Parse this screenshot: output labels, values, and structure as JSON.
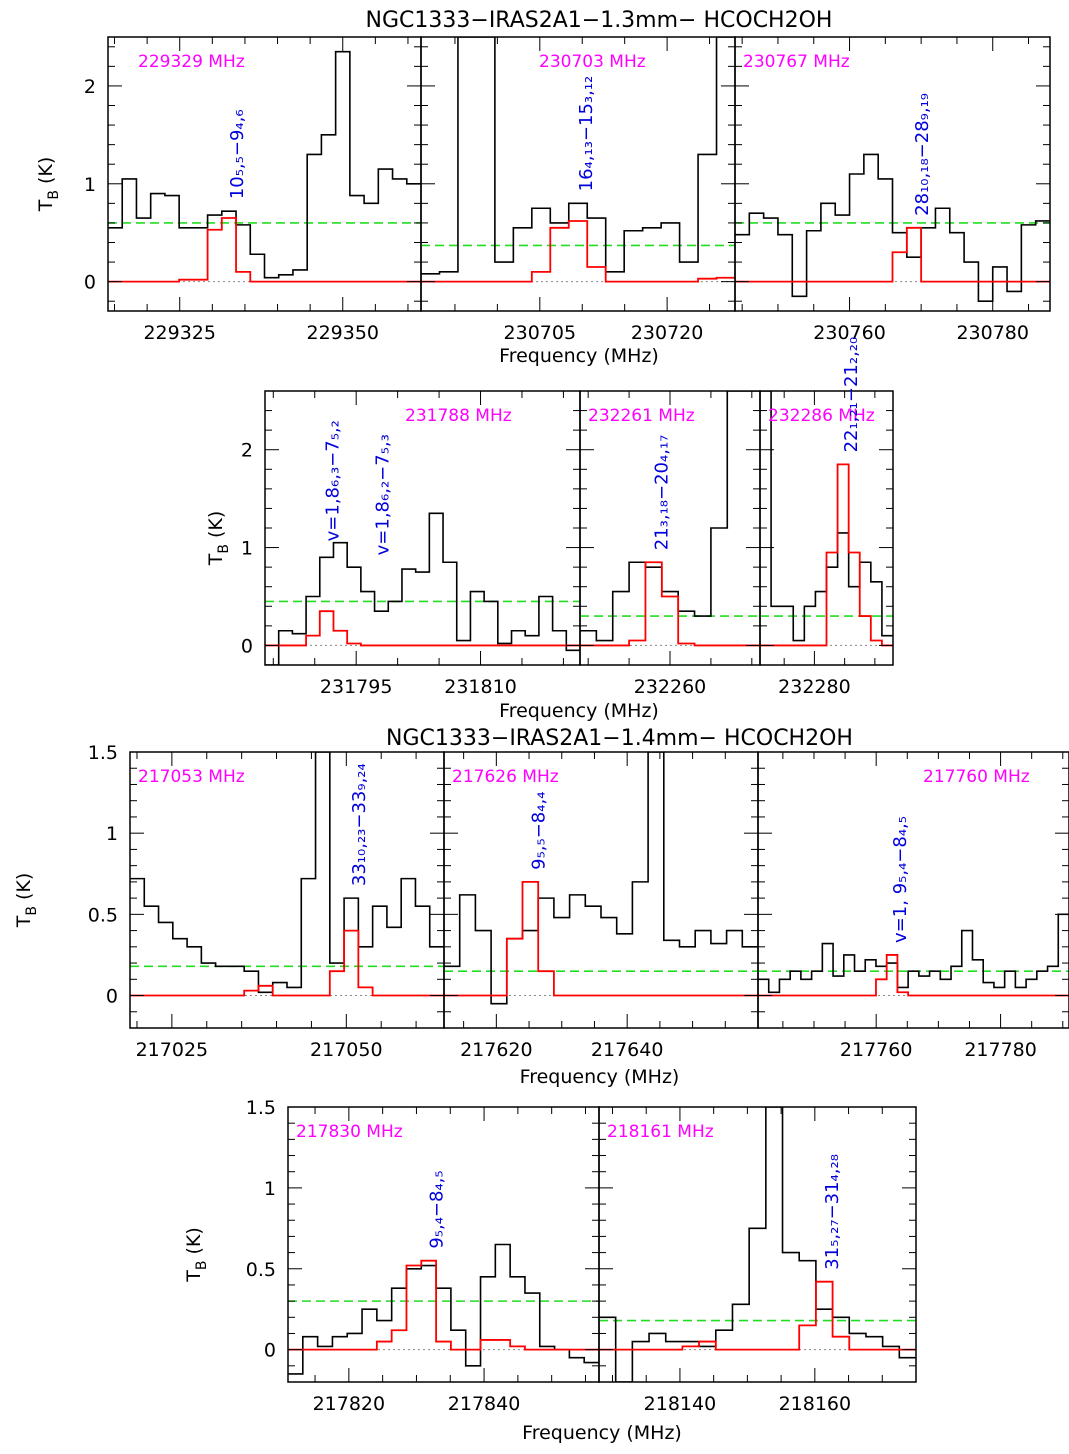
{
  "colors": {
    "observed": "#000000",
    "model": "#ff0000",
    "rms": "#22dd22",
    "freq_label": "#ff00ff",
    "transition": "#0000dd",
    "zero": "#888888"
  },
  "chart_data": [
    {
      "type": "line",
      "title": "NGC1333−IRAS2A1−1.3mm− HCOCH2OH",
      "xlabel": "Frequency (MHz)",
      "ylabel": "T_B (K)",
      "ylim": [
        -0.3,
        2.5
      ],
      "yticks": [
        "0",
        "1",
        "2"
      ],
      "panels": [
        {
          "freq_label": "229329 MHz",
          "transition": "10₅,₅−9₄,₆",
          "xlim": [
            229314,
            229362
          ],
          "xticks": [
            "229325",
            "229350"
          ],
          "rms": 0.6,
          "observed": [
            0.55,
            1.05,
            0.65,
            0.9,
            0.88,
            0.55,
            0.55,
            0.68,
            0.72,
            0.58,
            0.28,
            0.04,
            0.07,
            0.12,
            1.3,
            1.5,
            2.35,
            0.88,
            0.8,
            1.15,
            1.05,
            1.0
          ],
          "model": [
            0,
            0,
            0,
            0,
            0,
            0.02,
            0.02,
            0.53,
            0.65,
            0.1,
            0,
            0,
            0,
            0,
            0,
            0,
            0,
            0,
            0,
            0,
            0,
            0
          ]
        },
        {
          "freq_label": "230703 MHz",
          "transition": "16₄,₁₃−15₃,₁₂",
          "xlim": [
            230691,
            230728
          ],
          "xticks": [
            "230705",
            "230720"
          ],
          "rms": 0.37,
          "observed": [
            0.08,
            0.1,
            2.5,
            2.5,
            0.2,
            0.55,
            0.75,
            0.6,
            0.8,
            0.65,
            0.1,
            0.52,
            0.55,
            0.6,
            0.2,
            1.3,
            2.5
          ],
          "model": [
            0,
            0,
            0,
            0,
            0,
            0,
            0.1,
            0.55,
            0.62,
            0.15,
            0,
            0,
            0,
            0,
            0,
            0.03,
            0.04
          ]
        },
        {
          "freq_label": "230767 MHz",
          "transition": "28₁₀,₁₈−28₉,₁₉",
          "xlim": [
            230744,
            230788
          ],
          "xticks": [
            "230760",
            "230780"
          ],
          "rms": 0.6,
          "observed": [
            0.48,
            0.7,
            0.65,
            0.48,
            -0.15,
            0.52,
            0.8,
            0.68,
            1.1,
            1.3,
            1.05,
            0.5,
            0.25,
            0.55,
            0.75,
            0.5,
            0.2,
            -0.2,
            0.15,
            -0.1,
            0.58,
            0.62
          ],
          "model": [
            0,
            0,
            0,
            0,
            0,
            0,
            0,
            0,
            0,
            0,
            0,
            0.3,
            0.55,
            0,
            0,
            0,
            0,
            0,
            0,
            0,
            0,
            0
          ]
        }
      ]
    },
    {
      "type": "line",
      "title": "",
      "xlabel": "Frequency (MHz)",
      "ylabel": "T_B (K)",
      "ylim": [
        -0.2,
        2.6
      ],
      "yticks": [
        "0",
        "1",
        "2"
      ],
      "panels": [
        {
          "freq_label": "231788 MHz",
          "transition": "v=1,8₆,₃−7₅,₂",
          "transition2": "v=1,8₆,₂−7₅,₃",
          "xlim": [
            231784,
            231822
          ],
          "xticks": [
            "231795",
            "231810"
          ],
          "rms": 0.45,
          "observed": [
            -0.2,
            0.15,
            0.12,
            0.5,
            0.9,
            1.05,
            0.8,
            0.55,
            0.35,
            0.45,
            0.78,
            0.75,
            1.35,
            0.85,
            0.05,
            0.55,
            0.45,
            0.02,
            0.15,
            0.1,
            0.5,
            0.15,
            -0.05
          ],
          "model": [
            0,
            0,
            0,
            0.1,
            0.35,
            0.15,
            0.02,
            0,
            0,
            0,
            0,
            0,
            0,
            0,
            0,
            0,
            0,
            0,
            0,
            0,
            0,
            0,
            0
          ]
        },
        {
          "freq_label": "232261 MHz",
          "transition": "21₃,₁₈−20₄,₁₇",
          "xlim": [
            232249,
            232271
          ],
          "xticks": [
            "232260"
          ],
          "rms": 0.3,
          "observed": [
            0.15,
            0.05,
            0.55,
            0.85,
            0.8,
            0.55,
            0.35,
            0.3,
            1.2,
            2.6,
            2.6
          ],
          "model": [
            0,
            0,
            0,
            0.05,
            0.85,
            0.5,
            0.02,
            0,
            0,
            0,
            0
          ]
        },
        {
          "freq_label": "232286 MHz",
          "transition": "22₁,₂₁−21₂,₂₀",
          "xlim": [
            232271,
            232293
          ],
          "xticks": [
            "232280"
          ],
          "rms": 0.3,
          "observed": [
            2.6,
            0.4,
            0.4,
            0.05,
            0.4,
            0.55,
            0.8,
            1.15,
            0.6,
            0.85,
            0.65,
            0.1
          ],
          "model": [
            0,
            0,
            0,
            0,
            0,
            0,
            0.95,
            1.85,
            0.95,
            0.3,
            0.05,
            0
          ]
        }
      ]
    },
    {
      "type": "line",
      "title": "NGC1333−IRAS2A1−1.4mm− HCOCH2OH",
      "xlabel": "Frequency (MHz)",
      "ylabel": "T_B (K)",
      "ylim": [
        -0.2,
        1.5
      ],
      "yticks": [
        "0",
        "0.5",
        "1",
        "1.5"
      ],
      "panels": [
        {
          "freq_label": "217053 MHz",
          "transition": "33₁₀,₂₃−33₉,₂₄",
          "xlim": [
            217019,
            217064
          ],
          "xticks": [
            "217025",
            "217050"
          ],
          "rms": 0.18,
          "observed": [
            0.72,
            0.55,
            0.45,
            0.35,
            0.3,
            0.2,
            0.18,
            0.18,
            0.15,
            0.02,
            0.08,
            0.05,
            0.72,
            1.5,
            0.2,
            0.6,
            0.3,
            0.55,
            0.42,
            0.72,
            0.55,
            0.3
          ],
          "model": [
            0,
            0,
            0,
            0,
            0,
            0,
            0,
            0,
            0.03,
            0.06,
            0,
            0,
            0,
            0,
            0.15,
            0.4,
            0.05,
            0,
            0,
            0,
            0,
            0
          ]
        },
        {
          "freq_label": "217626 MHz",
          "transition": "9₅,₅−8₄,₄",
          "xlim": [
            217612,
            217660
          ],
          "xticks": [
            "217620",
            "217640"
          ],
          "rms": 0.15,
          "observed": [
            0.18,
            0.62,
            0.4,
            -0.05,
            0.35,
            0.4,
            0.6,
            0.48,
            0.62,
            0.55,
            0.48,
            0.38,
            0.7,
            1.5,
            0.34,
            0.3,
            0.4,
            0.32,
            0.4,
            0.3
          ],
          "model": [
            0,
            0,
            0,
            0,
            0.35,
            0.7,
            0.15,
            0,
            0,
            0,
            0,
            0,
            0,
            0,
            0,
            0,
            0,
            0,
            0,
            0
          ]
        },
        {
          "freq_label": "217760 MHz",
          "transition": "v=1, 9₅,₄−8₄,₅",
          "xlim": [
            217741,
            217791
          ],
          "xticks": [
            "217760",
            "217780"
          ],
          "rms": 0.15,
          "observed": [
            0.1,
            0.02,
            0.1,
            0.15,
            0.1,
            0.15,
            0.32,
            0.12,
            0.25,
            0.15,
            0.22,
            0.18,
            0.2,
            0.05,
            0.15,
            0.12,
            0.15,
            0.1,
            0.18,
            0.4,
            0.22,
            0.08,
            0.05,
            0.15,
            0.05,
            0.1,
            0.15,
            0.18,
            0.5
          ],
          "model": [
            0,
            0,
            0,
            0,
            0,
            0,
            0,
            0,
            0,
            0,
            0,
            0.1,
            0.25,
            0.02,
            0,
            0,
            0,
            0,
            0,
            0,
            0,
            0,
            0,
            0,
            0,
            0,
            0,
            0,
            0
          ]
        }
      ]
    },
    {
      "type": "line",
      "title": "",
      "xlabel": "Frequency (MHz)",
      "ylabel": "T_B (K)",
      "ylim": [
        -0.2,
        1.5
      ],
      "yticks": [
        "0",
        "0.5",
        "1",
        "1.5"
      ],
      "panels": [
        {
          "freq_label": "217830 MHz",
          "transition": "9₅,₄−8₄,₅",
          "xlim": [
            217811,
            217857
          ],
          "xticks": [
            "217820",
            "217840"
          ],
          "rms": 0.3,
          "observed": [
            -0.15,
            0.08,
            0.02,
            0.08,
            0.1,
            0.25,
            0.18,
            0.38,
            0.5,
            0.52,
            0.38,
            0.12,
            -0.1,
            0.45,
            0.65,
            0.45,
            0.35,
            0.02,
            0.0,
            -0.05,
            -0.08
          ],
          "model": [
            0,
            0,
            0,
            0,
            0,
            0,
            0.05,
            0.12,
            0.52,
            0.55,
            0.05,
            0,
            0,
            0.06,
            0.06,
            0.02,
            0,
            0,
            0,
            0,
            0
          ]
        },
        {
          "freq_label": "218161 MHz",
          "transition": "31₅,₂₇−31₄,₂₈",
          "xlim": [
            218128,
            218175
          ],
          "xticks": [
            "218140",
            "218160"
          ],
          "rms": 0.18,
          "observed": [
            0.2,
            -0.2,
            0.05,
            0.1,
            0.05,
            0.05,
            0.02,
            0.12,
            0.28,
            0.75,
            1.5,
            0.6,
            0.55,
            0.25,
            0.2,
            0.1,
            0.08,
            0.02,
            -0.05
          ],
          "model": [
            0,
            0,
            0,
            0,
            0,
            0.02,
            0.05,
            0,
            0,
            0,
            0,
            0,
            0.15,
            0.42,
            0.08,
            0,
            0,
            0,
            0
          ]
        }
      ]
    }
  ]
}
